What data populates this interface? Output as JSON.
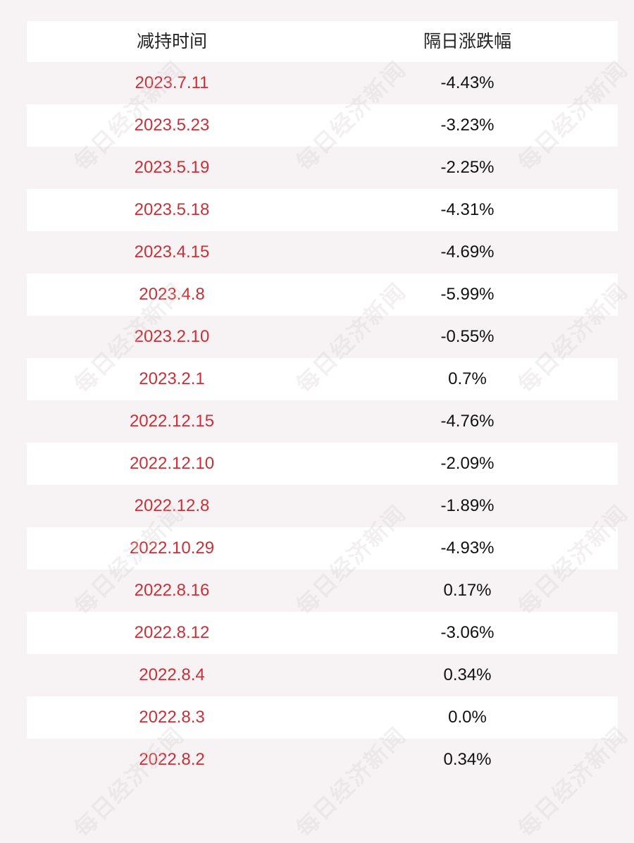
{
  "table": {
    "headers": {
      "col1": "减持时间",
      "col2": "隔日涨跌幅"
    },
    "rows": [
      {
        "date": "2023.7.11",
        "change": "-4.43%"
      },
      {
        "date": "2023.5.23",
        "change": "-3.23%"
      },
      {
        "date": "2023.5.19",
        "change": "-2.25%"
      },
      {
        "date": "2023.5.18",
        "change": "-4.31%"
      },
      {
        "date": "2023.4.15",
        "change": "-4.69%"
      },
      {
        "date": "2023.4.8",
        "change": "-5.99%"
      },
      {
        "date": "2023.2.10",
        "change": "-0.55%"
      },
      {
        "date": "2023.2.1",
        "change": "0.7%"
      },
      {
        "date": "2022.12.15",
        "change": "-4.76%"
      },
      {
        "date": "2022.12.10",
        "change": "-2.09%"
      },
      {
        "date": "2022.12.8",
        "change": "-1.89%"
      },
      {
        "date": "2022.10.29",
        "change": "-4.93%"
      },
      {
        "date": "2022.8.16",
        "change": "0.17%"
      },
      {
        "date": "2022.8.12",
        "change": "-3.06%"
      },
      {
        "date": "2022.8.4",
        "change": "0.34%"
      },
      {
        "date": "2022.8.3",
        "change": "0.0%"
      },
      {
        "date": "2022.8.2",
        "change": "0.34%"
      }
    ]
  },
  "watermark": {
    "text": "每日经济新闻"
  },
  "colors": {
    "date_text": "#d02e36",
    "change_text": "#111111",
    "row_alt": "#f7f3f4",
    "row_white": "#ffffff"
  }
}
